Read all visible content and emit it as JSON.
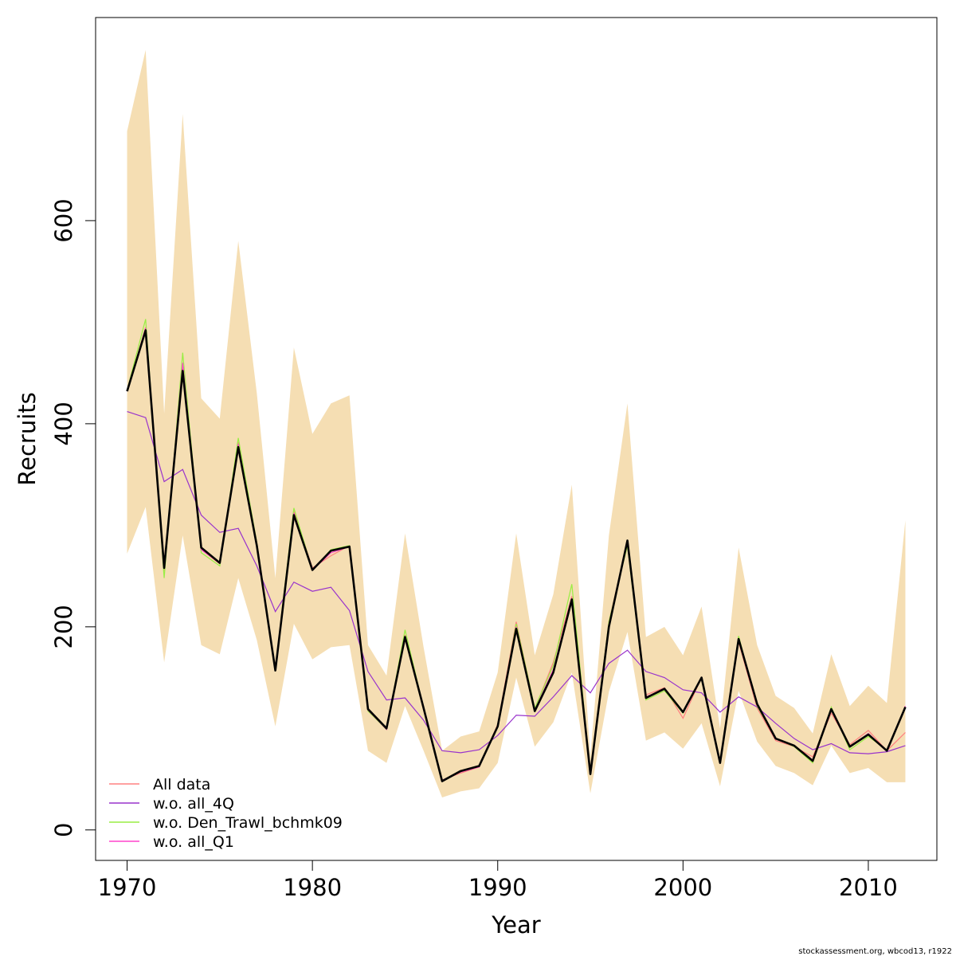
{
  "credit": "stockassessment.org, wbcod13, r1922",
  "chart_data": {
    "type": "line",
    "title": "",
    "xlabel": "Year",
    "ylabel": "Recruits",
    "xlim": [
      1968.3,
      2013.7
    ],
    "ylim": [
      -30,
      800
    ],
    "xticks": [
      1970,
      1980,
      1990,
      2000,
      2010
    ],
    "yticks": [
      0,
      200,
      400,
      600
    ],
    "grid": false,
    "legend_position": "bottom-left",
    "band_color": "#f5deb3",
    "x": [
      1970,
      1971,
      1972,
      1973,
      1974,
      1975,
      1976,
      1977,
      1978,
      1979,
      1980,
      1981,
      1982,
      1983,
      1984,
      1985,
      1986,
      1987,
      1988,
      1989,
      1990,
      1991,
      1992,
      1993,
      1994,
      1995,
      1996,
      1997,
      1998,
      1999,
      2000,
      2001,
      2002,
      2003,
      2004,
      2005,
      2006,
      2007,
      2008,
      2009,
      2010,
      2011,
      2012
    ],
    "band_upper": [
      688,
      768,
      410,
      705,
      425,
      405,
      580,
      430,
      248,
      475,
      390,
      420,
      428,
      182,
      152,
      292,
      180,
      78,
      92,
      97,
      155,
      292,
      172,
      232,
      340,
      72,
      290,
      420,
      190,
      200,
      172,
      220,
      100,
      278,
      182,
      132,
      120,
      95,
      173,
      122,
      142,
      125,
      305
    ],
    "band_lower": [
      272,
      318,
      165,
      290,
      182,
      173,
      248,
      187,
      102,
      203,
      168,
      180,
      182,
      78,
      66,
      122,
      78,
      32,
      38,
      41,
      66,
      150,
      82,
      106,
      155,
      36,
      136,
      195,
      88,
      96,
      80,
      105,
      43,
      137,
      87,
      63,
      56,
      44,
      83,
      56,
      61,
      47,
      47
    ],
    "estimate": [
      432,
      492,
      258,
      452,
      278,
      263,
      377,
      280,
      157,
      310,
      256,
      275,
      279,
      119,
      100,
      190,
      120,
      48,
      58,
      63,
      102,
      198,
      117,
      155,
      227,
      55,
      200,
      285,
      130,
      139,
      116,
      150,
      66,
      188,
      124,
      90,
      83,
      68,
      119,
      82,
      94,
      78,
      121
    ],
    "series": [
      {
        "name": "All data",
        "color": "#ff8080",
        "values": [
          432,
          495,
          255,
          458,
          276,
          262,
          382,
          283,
          157,
          314,
          258,
          270,
          280,
          118,
          99,
          192,
          118,
          49,
          56,
          62,
          104,
          205,
          119,
          165,
          230,
          56,
          205,
          283,
          133,
          140,
          110,
          150,
          65,
          185,
          120,
          88,
          82,
          72,
          115,
          84,
          98,
          78,
          96
        ]
      },
      {
        "name": "w.o. all_4Q",
        "color": "#9933cc",
        "values": [
          412,
          406,
          343,
          355,
          310,
          293,
          297,
          260,
          215,
          244,
          235,
          239,
          216,
          156,
          128,
          130,
          108,
          78,
          76,
          79,
          93,
          113,
          112,
          131,
          152,
          135,
          164,
          177,
          156,
          150,
          138,
          135,
          116,
          131,
          121,
          105,
          90,
          79,
          85,
          76,
          75,
          77,
          83
        ]
      },
      {
        "name": "w.o. Den_Trawl_bchmk09",
        "color": "#99ee44",
        "values": [
          433,
          503,
          248,
          470,
          273,
          260,
          386,
          283,
          158,
          317,
          256,
          276,
          280,
          117,
          99,
          197,
          120,
          49,
          57,
          63,
          101,
          203,
          120,
          162,
          242,
          56,
          205,
          280,
          128,
          137,
          115,
          150,
          66,
          191,
          122,
          90,
          82,
          66,
          121,
          79,
          92,
          79,
          121
        ]
      },
      {
        "name": "w.o. all_Q1",
        "color": "#ff44cc",
        "values": [
          432,
          494,
          258,
          460,
          276,
          263,
          380,
          281,
          158,
          312,
          256,
          273,
          279,
          118,
          99,
          190,
          119,
          49,
          57,
          62,
          102,
          200,
          118,
          158,
          228,
          55,
          202,
          284,
          131,
          139,
          116,
          150,
          66,
          188,
          123,
          90,
          83,
          69,
          119,
          82,
          95,
          78,
          122
        ]
      }
    ]
  }
}
